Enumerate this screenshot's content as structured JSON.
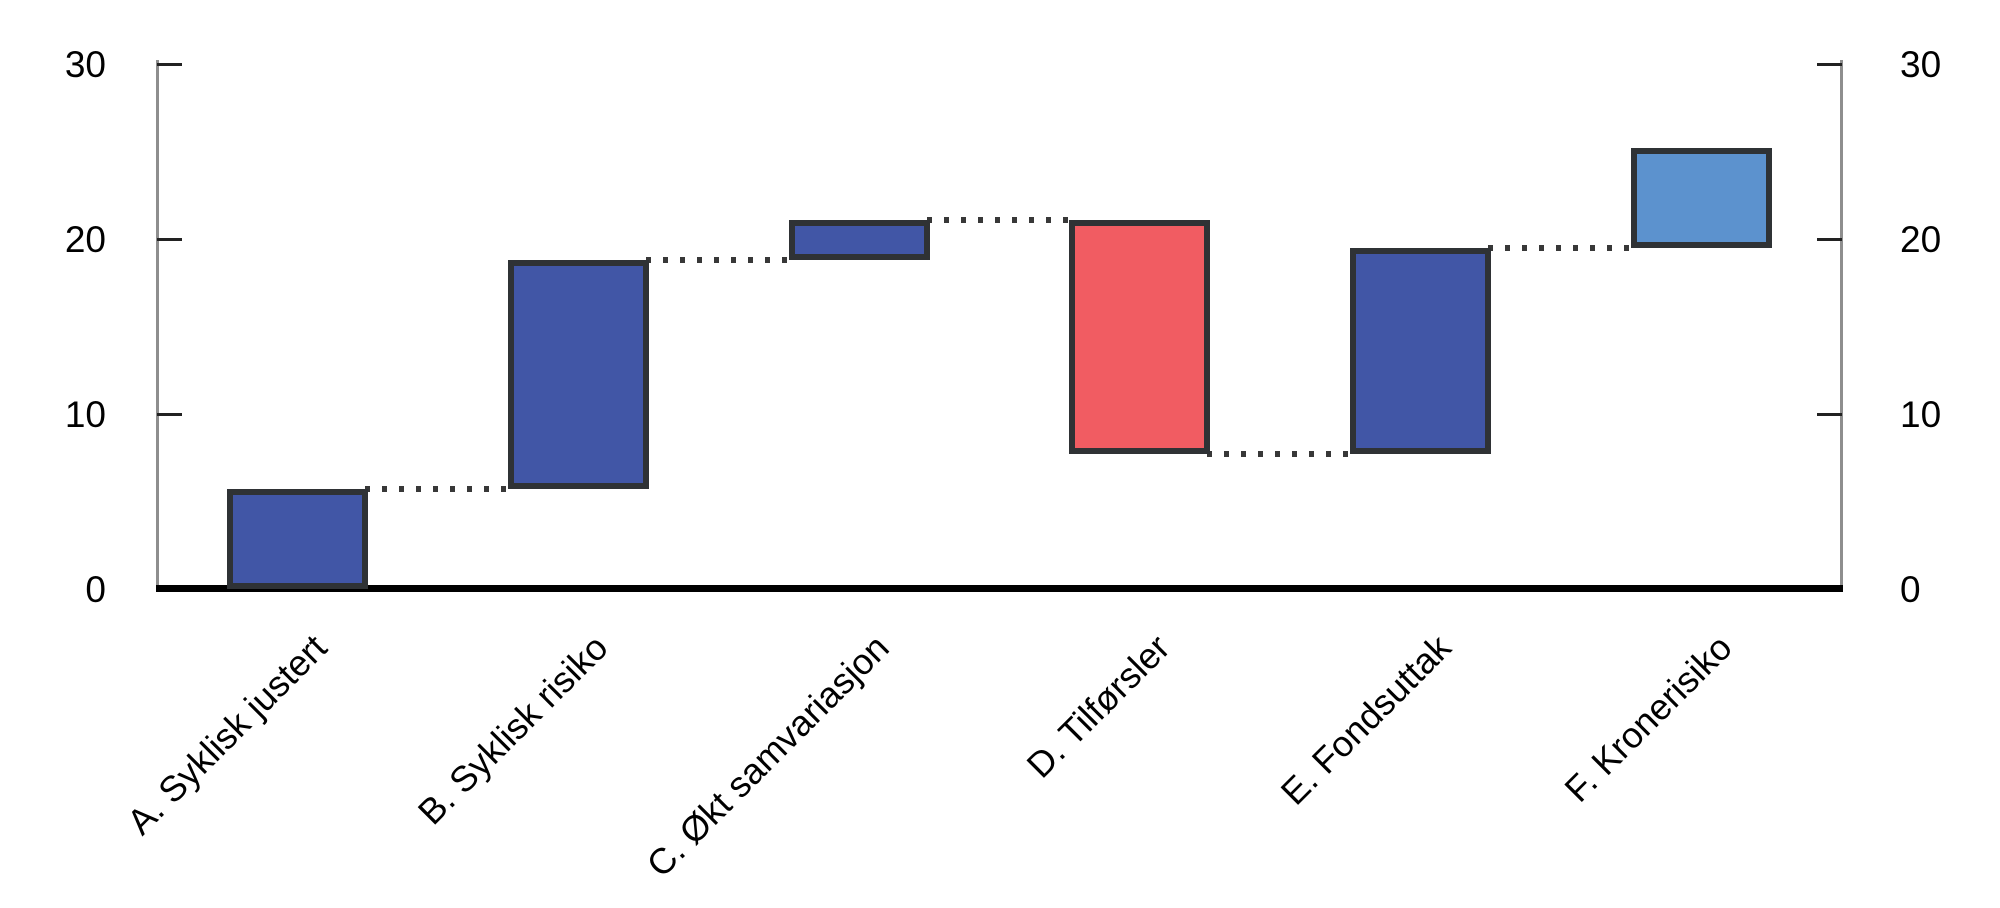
{
  "chart_data": {
    "type": "bar",
    "subtype": "waterfall",
    "title": "",
    "xlabel": "",
    "ylabel": "",
    "categories": [
      "A. Syklisk justert",
      "B. Syklisk risiko",
      "C. Økt samvariasjon",
      "D. Tilførsler",
      "E. Fondsuttak",
      "F. Kronerisiko"
    ],
    "bars": [
      {
        "label": "A. Syklisk justert",
        "from": 0,
        "to": 5.7,
        "delta": 5.7,
        "role": "increase"
      },
      {
        "label": "B. Syklisk risiko",
        "from": 5.7,
        "to": 18.8,
        "delta": 13.1,
        "role": "increase"
      },
      {
        "label": "C. Økt samvariasjon",
        "from": 18.8,
        "to": 21.1,
        "delta": 2.3,
        "role": "increase"
      },
      {
        "label": "D. Tilførsler",
        "from": 21.1,
        "to": 7.7,
        "delta": -13.4,
        "role": "decrease"
      },
      {
        "label": "E. Fondsuttak",
        "from": 7.7,
        "to": 19.5,
        "delta": 11.8,
        "role": "increase"
      },
      {
        "label": "F. Kronerisiko",
        "from": 19.5,
        "to": 25.2,
        "delta": 5.7,
        "role": "total"
      }
    ],
    "connector_levels": [
      5.7,
      18.8,
      21.1,
      7.7,
      19.5
    ],
    "yticks": [
      0,
      10,
      20,
      30
    ],
    "ytick_labels": [
      "0",
      "10",
      "20",
      "30"
    ],
    "ylim": [
      0,
      30
    ],
    "y_axis_sides": [
      "left",
      "right"
    ],
    "grid": false,
    "legend": false,
    "colors": {
      "increase": "#4156A6",
      "decrease": "#F15C62",
      "total": "#5C92CE",
      "bar_border": "#2F3235",
      "connector": "#383838",
      "baseline": "#000000",
      "axis_line": "#8E8E8E",
      "tick_mark": "#222222",
      "text": "#000000",
      "background": "#FFFFFF"
    }
  }
}
